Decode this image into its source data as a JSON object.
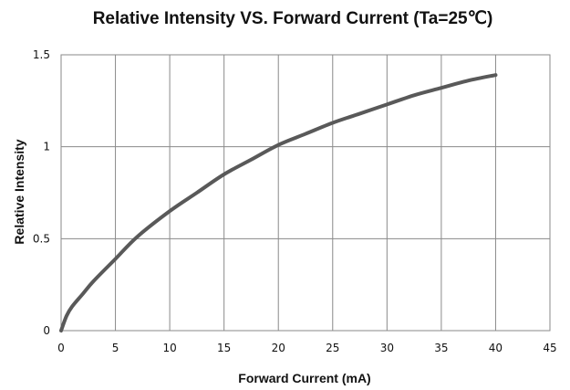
{
  "chart_data": {
    "type": "line",
    "title": "Relative Intensity VS. Forward Current  (Ta=25℃)",
    "xlabel": "Forward Current (mA)",
    "ylabel": "Relative Intensity",
    "xlim": [
      0,
      45
    ],
    "ylim": [
      0,
      1.5
    ],
    "x_ticks": [
      "0",
      "5",
      "10",
      "15",
      "20",
      "25",
      "30",
      "35",
      "40",
      "45"
    ],
    "y_ticks": [
      "0",
      "0.5",
      "1",
      "1.5"
    ],
    "grid": true,
    "colors": {
      "curve": "#595959",
      "grid": "#8a8a8a"
    },
    "series": [
      {
        "x": [
          0,
          0.5,
          1,
          2,
          3,
          5,
          7,
          10,
          12.5,
          15,
          17.5,
          20,
          22.5,
          25,
          27.5,
          30,
          32.5,
          35,
          37.5,
          40
        ],
        "y": [
          0,
          0.08,
          0.13,
          0.2,
          0.27,
          0.39,
          0.51,
          0.65,
          0.75,
          0.85,
          0.93,
          1.01,
          1.07,
          1.13,
          1.18,
          1.23,
          1.28,
          1.32,
          1.36,
          1.39
        ]
      }
    ]
  }
}
